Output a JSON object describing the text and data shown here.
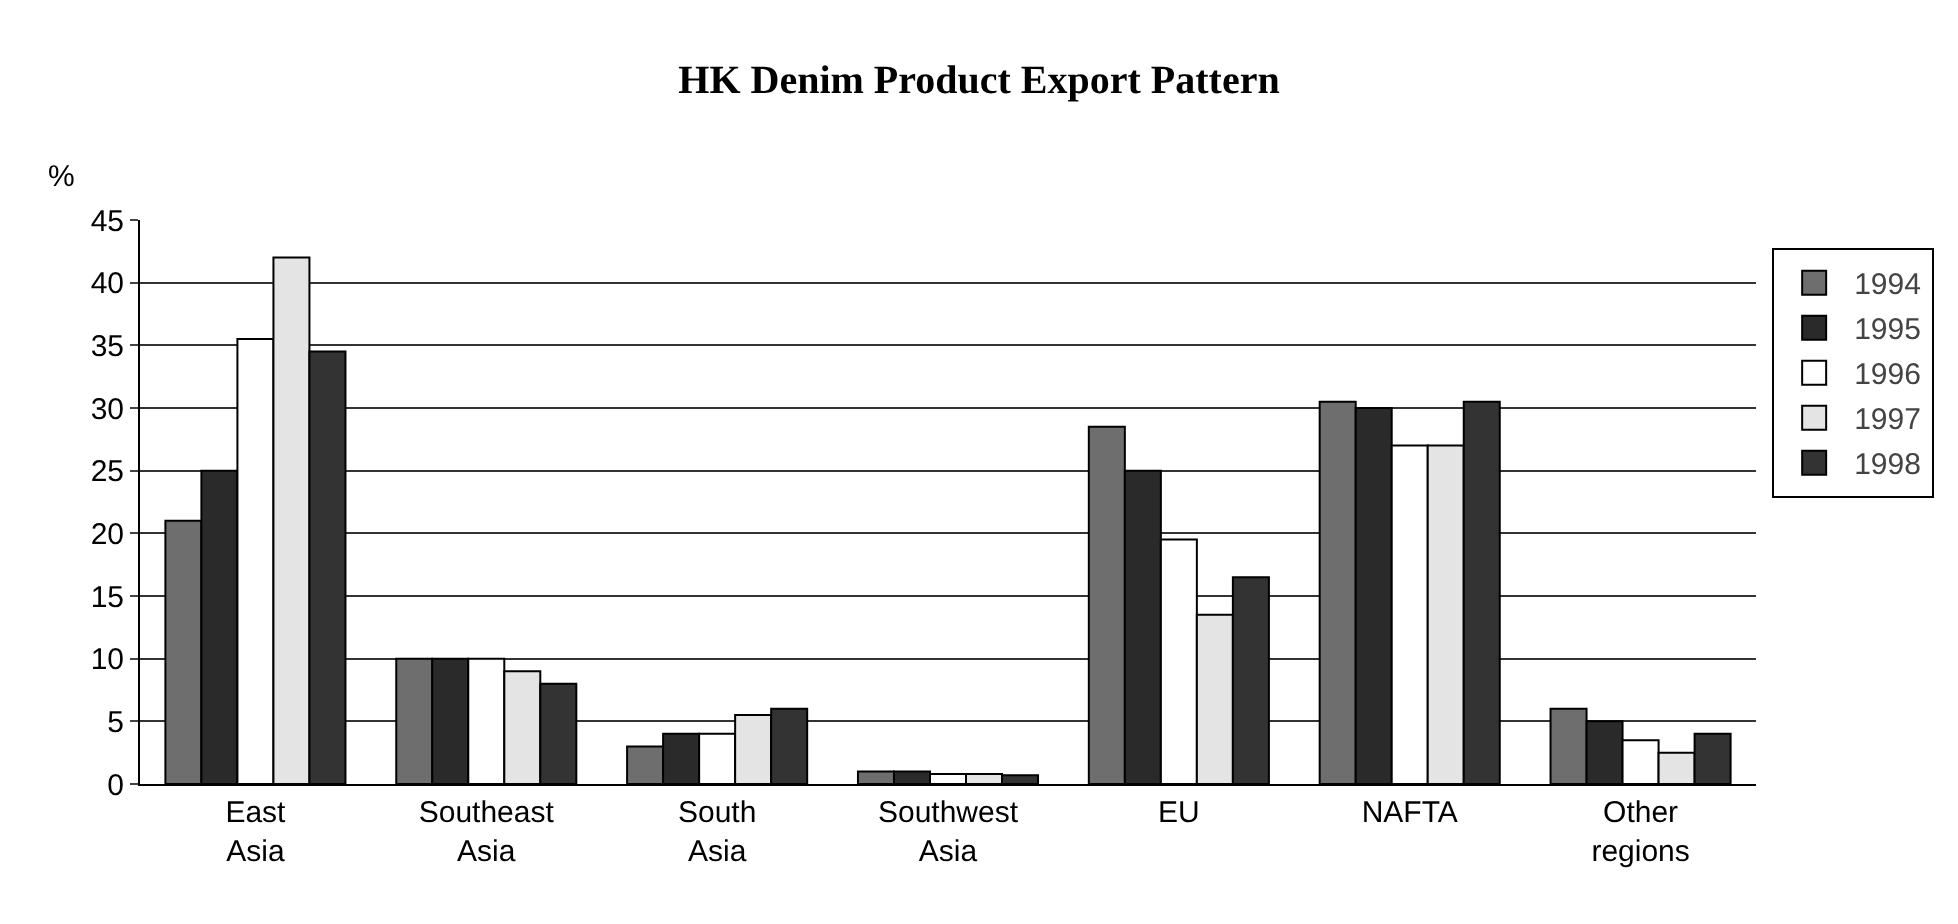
{
  "chart_data": {
    "type": "bar",
    "title": "HK Denim Product Export Pattern",
    "ylabel": "%",
    "categories": [
      "East Asia",
      "Southeast Asia",
      "South Asia",
      "Southwest Asia",
      "EU",
      "NAFTA",
      "Other regions"
    ],
    "series": [
      {
        "name": "1994",
        "color": "#6e6e6e",
        "values": [
          21,
          10,
          3,
          1,
          28.5,
          30.5,
          6
        ]
      },
      {
        "name": "1995",
        "color": "#2a2a2a",
        "values": [
          25,
          10,
          4,
          1,
          25,
          30,
          5
        ]
      },
      {
        "name": "1996",
        "color": "#ffffff",
        "values": [
          35.5,
          10,
          4,
          0.8,
          19.5,
          27,
          3.5
        ]
      },
      {
        "name": "1997",
        "color": "#e4e4e4",
        "values": [
          42,
          9,
          5.5,
          0.8,
          13.5,
          27,
          2.5
        ]
      },
      {
        "name": "1998",
        "color": "#333333",
        "values": [
          34.5,
          8,
          6,
          0.7,
          16.5,
          30.5,
          4
        ]
      }
    ],
    "ylim": [
      0,
      45
    ],
    "yticks": [
      0,
      5,
      10,
      15,
      20,
      25,
      30,
      35,
      40,
      45
    ],
    "grid": "y",
    "legend": "right"
  }
}
